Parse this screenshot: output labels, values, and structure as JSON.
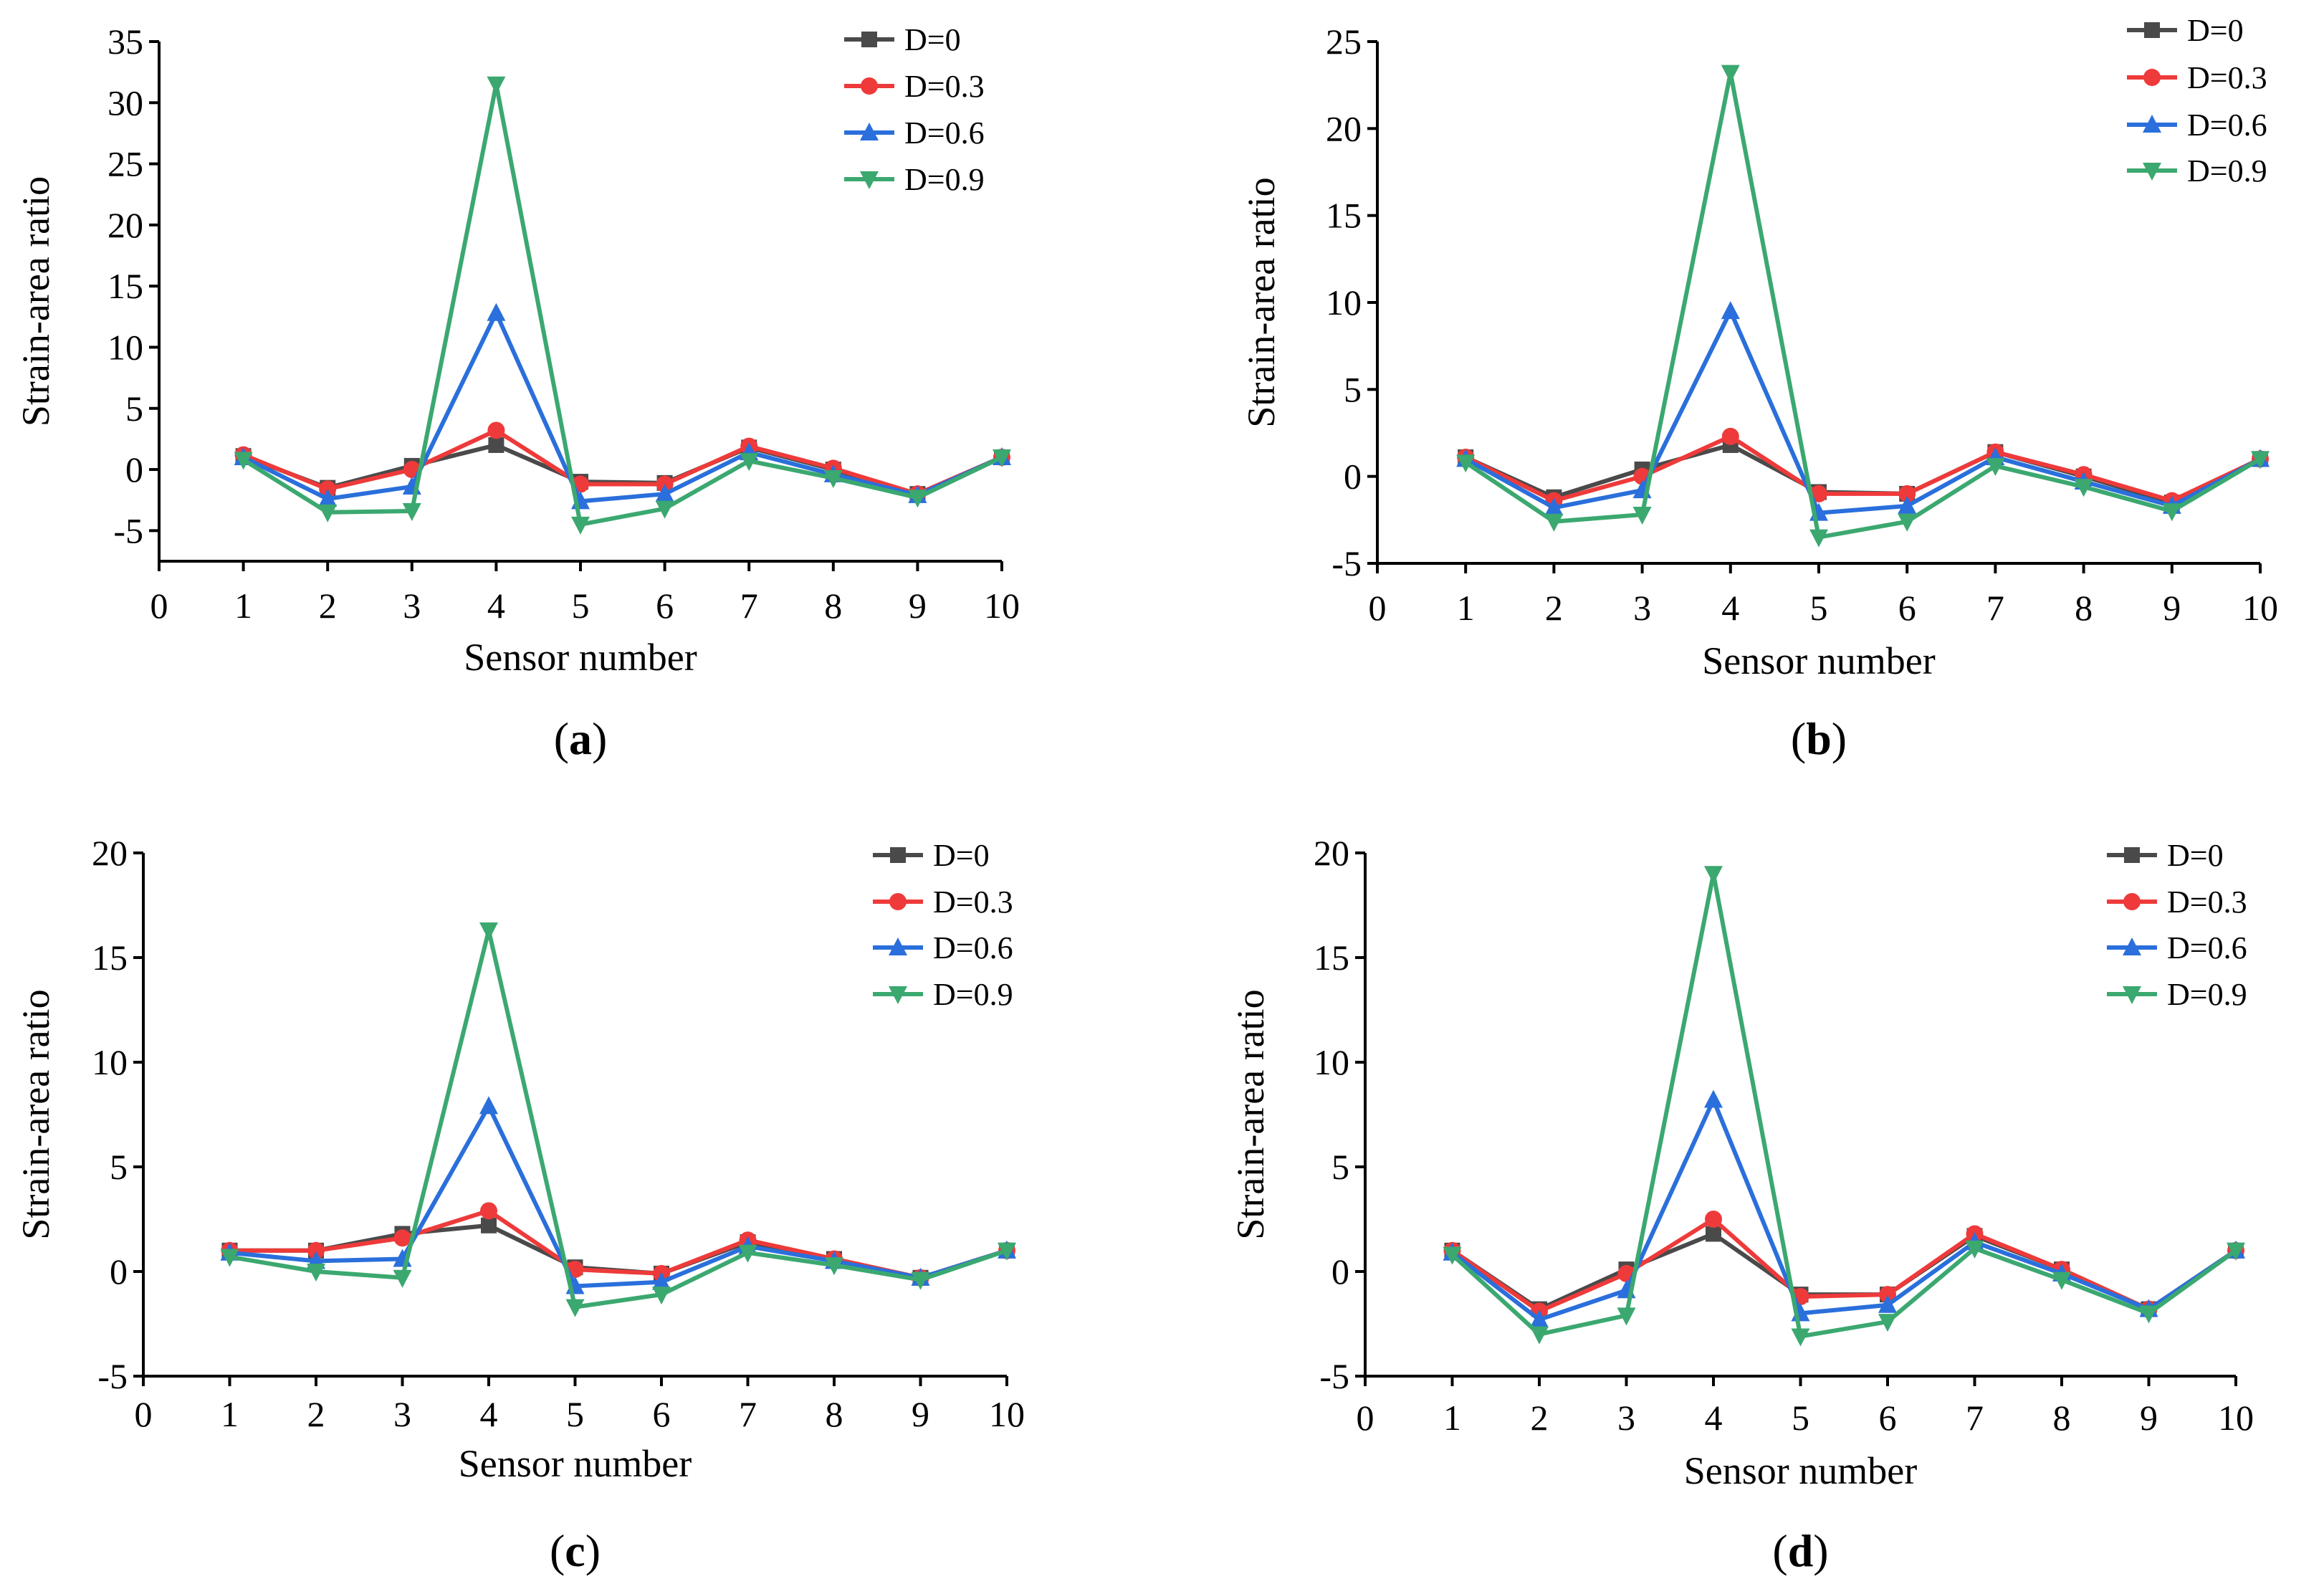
{
  "colors": {
    "D=0": "#4a4a4a",
    "D=0.3": "#ee3a3a",
    "D=0.6": "#2a6fdb",
    "D=0.9": "#3ba870"
  },
  "markers": {
    "D=0": "square",
    "D=0.3": "circle",
    "D=0.6": "triangle-up",
    "D=0.9": "triangle-down"
  },
  "chart_data": [
    {
      "type": "line",
      "panel": "a",
      "xlabel": "Sensor number",
      "ylabel": "Strain-area ratio",
      "xlim": [
        0,
        10
      ],
      "ylim": [
        -7.5,
        35
      ],
      "xticks": [
        0,
        1,
        2,
        3,
        4,
        5,
        6,
        7,
        8,
        9,
        10
      ],
      "yticks": [
        -5,
        0,
        5,
        10,
        15,
        20,
        25,
        30,
        35
      ],
      "legend": "top-right",
      "x": [
        1,
        2,
        3,
        4,
        5,
        6,
        7,
        8,
        9,
        10
      ],
      "series": [
        {
          "name": "D=0",
          "values": [
            1.1,
            -1.5,
            0.3,
            2.0,
            -1.0,
            -1.1,
            1.8,
            0.0,
            -2.0,
            1.0
          ]
        },
        {
          "name": "D=0.3",
          "values": [
            1.2,
            -1.6,
            0.0,
            3.2,
            -1.2,
            -1.2,
            1.9,
            0.1,
            -2.0,
            1.0
          ]
        },
        {
          "name": "D=0.6",
          "values": [
            1.0,
            -2.4,
            -1.4,
            12.8,
            -2.6,
            -2.0,
            1.4,
            -0.4,
            -2.1,
            1.0
          ]
        },
        {
          "name": "D=0.9",
          "values": [
            0.8,
            -3.5,
            -3.4,
            31.5,
            -4.5,
            -3.2,
            0.7,
            -0.7,
            -2.3,
            1.0
          ]
        }
      ]
    },
    {
      "type": "line",
      "panel": "b",
      "xlabel": "Sensor number",
      "ylabel": "Strain-area ratio",
      "xlim": [
        0,
        10
      ],
      "ylim": [
        -5,
        25
      ],
      "xticks": [
        0,
        1,
        2,
        3,
        4,
        5,
        6,
        7,
        8,
        9,
        10
      ],
      "yticks": [
        -5,
        0,
        5,
        10,
        15,
        20,
        25
      ],
      "legend": "top-right",
      "x": [
        1,
        2,
        3,
        4,
        5,
        6,
        7,
        8,
        9,
        10
      ],
      "series": [
        {
          "name": "D=0",
          "values": [
            1.1,
            -1.2,
            0.4,
            1.8,
            -0.9,
            -1.0,
            1.4,
            0.0,
            -1.5,
            1.0
          ]
        },
        {
          "name": "D=0.3",
          "values": [
            1.1,
            -1.4,
            0.0,
            2.3,
            -1.0,
            -1.0,
            1.4,
            0.1,
            -1.4,
            1.0
          ]
        },
        {
          "name": "D=0.6",
          "values": [
            1.0,
            -1.8,
            -0.8,
            9.5,
            -2.1,
            -1.7,
            1.1,
            -0.3,
            -1.7,
            1.0
          ]
        },
        {
          "name": "D=0.9",
          "values": [
            0.8,
            -2.6,
            -2.2,
            23.2,
            -3.5,
            -2.6,
            0.6,
            -0.6,
            -2.0,
            1.0
          ]
        }
      ]
    },
    {
      "type": "line",
      "panel": "c",
      "xlabel": "Sensor number",
      "ylabel": "Strain-area ratio",
      "xlim": [
        0,
        10
      ],
      "ylim": [
        -5,
        20
      ],
      "xticks": [
        0,
        1,
        2,
        3,
        4,
        5,
        6,
        7,
        8,
        9,
        10
      ],
      "yticks": [
        -5,
        0,
        5,
        10,
        15,
        20
      ],
      "legend": "top-right",
      "x": [
        1,
        2,
        3,
        4,
        5,
        6,
        7,
        8,
        9,
        10
      ],
      "series": [
        {
          "name": "D=0",
          "values": [
            1.0,
            1.0,
            1.8,
            2.2,
            0.2,
            -0.1,
            1.4,
            0.6,
            -0.3,
            1.0
          ]
        },
        {
          "name": "D=0.3",
          "values": [
            1.0,
            1.0,
            1.6,
            2.9,
            0.1,
            -0.1,
            1.5,
            0.6,
            -0.3,
            1.0
          ]
        },
        {
          "name": "D=0.6",
          "values": [
            0.9,
            0.5,
            0.6,
            7.9,
            -0.7,
            -0.5,
            1.2,
            0.5,
            -0.3,
            1.0
          ]
        },
        {
          "name": "D=0.9",
          "values": [
            0.7,
            0.0,
            -0.3,
            16.3,
            -1.7,
            -1.1,
            0.9,
            0.3,
            -0.4,
            1.0
          ]
        }
      ]
    },
    {
      "type": "line",
      "panel": "d",
      "xlabel": "Sensor number",
      "ylabel": "Strain-area ratio",
      "xlim": [
        0,
        10
      ],
      "ylim": [
        -5,
        20
      ],
      "xticks": [
        0,
        1,
        2,
        3,
        4,
        5,
        6,
        7,
        8,
        9,
        10
      ],
      "yticks": [
        -5,
        0,
        5,
        10,
        15,
        20
      ],
      "legend": "top-right",
      "x": [
        1,
        2,
        3,
        4,
        5,
        6,
        7,
        8,
        9,
        10
      ],
      "series": [
        {
          "name": "D=0",
          "values": [
            1.0,
            -1.8,
            0.1,
            1.8,
            -1.1,
            -1.1,
            1.7,
            0.1,
            -1.8,
            1.0
          ]
        },
        {
          "name": "D=0.3",
          "values": [
            1.0,
            -1.9,
            -0.1,
            2.5,
            -1.2,
            -1.1,
            1.8,
            0.1,
            -1.8,
            1.0
          ]
        },
        {
          "name": "D=0.6",
          "values": [
            0.9,
            -2.3,
            -0.9,
            8.2,
            -2.0,
            -1.6,
            1.4,
            -0.1,
            -1.8,
            1.0
          ]
        },
        {
          "name": "D=0.9",
          "values": [
            0.8,
            -3.0,
            -2.1,
            19.0,
            -3.1,
            -2.4,
            1.1,
            -0.4,
            -2.0,
            1.0
          ]
        }
      ]
    }
  ]
}
